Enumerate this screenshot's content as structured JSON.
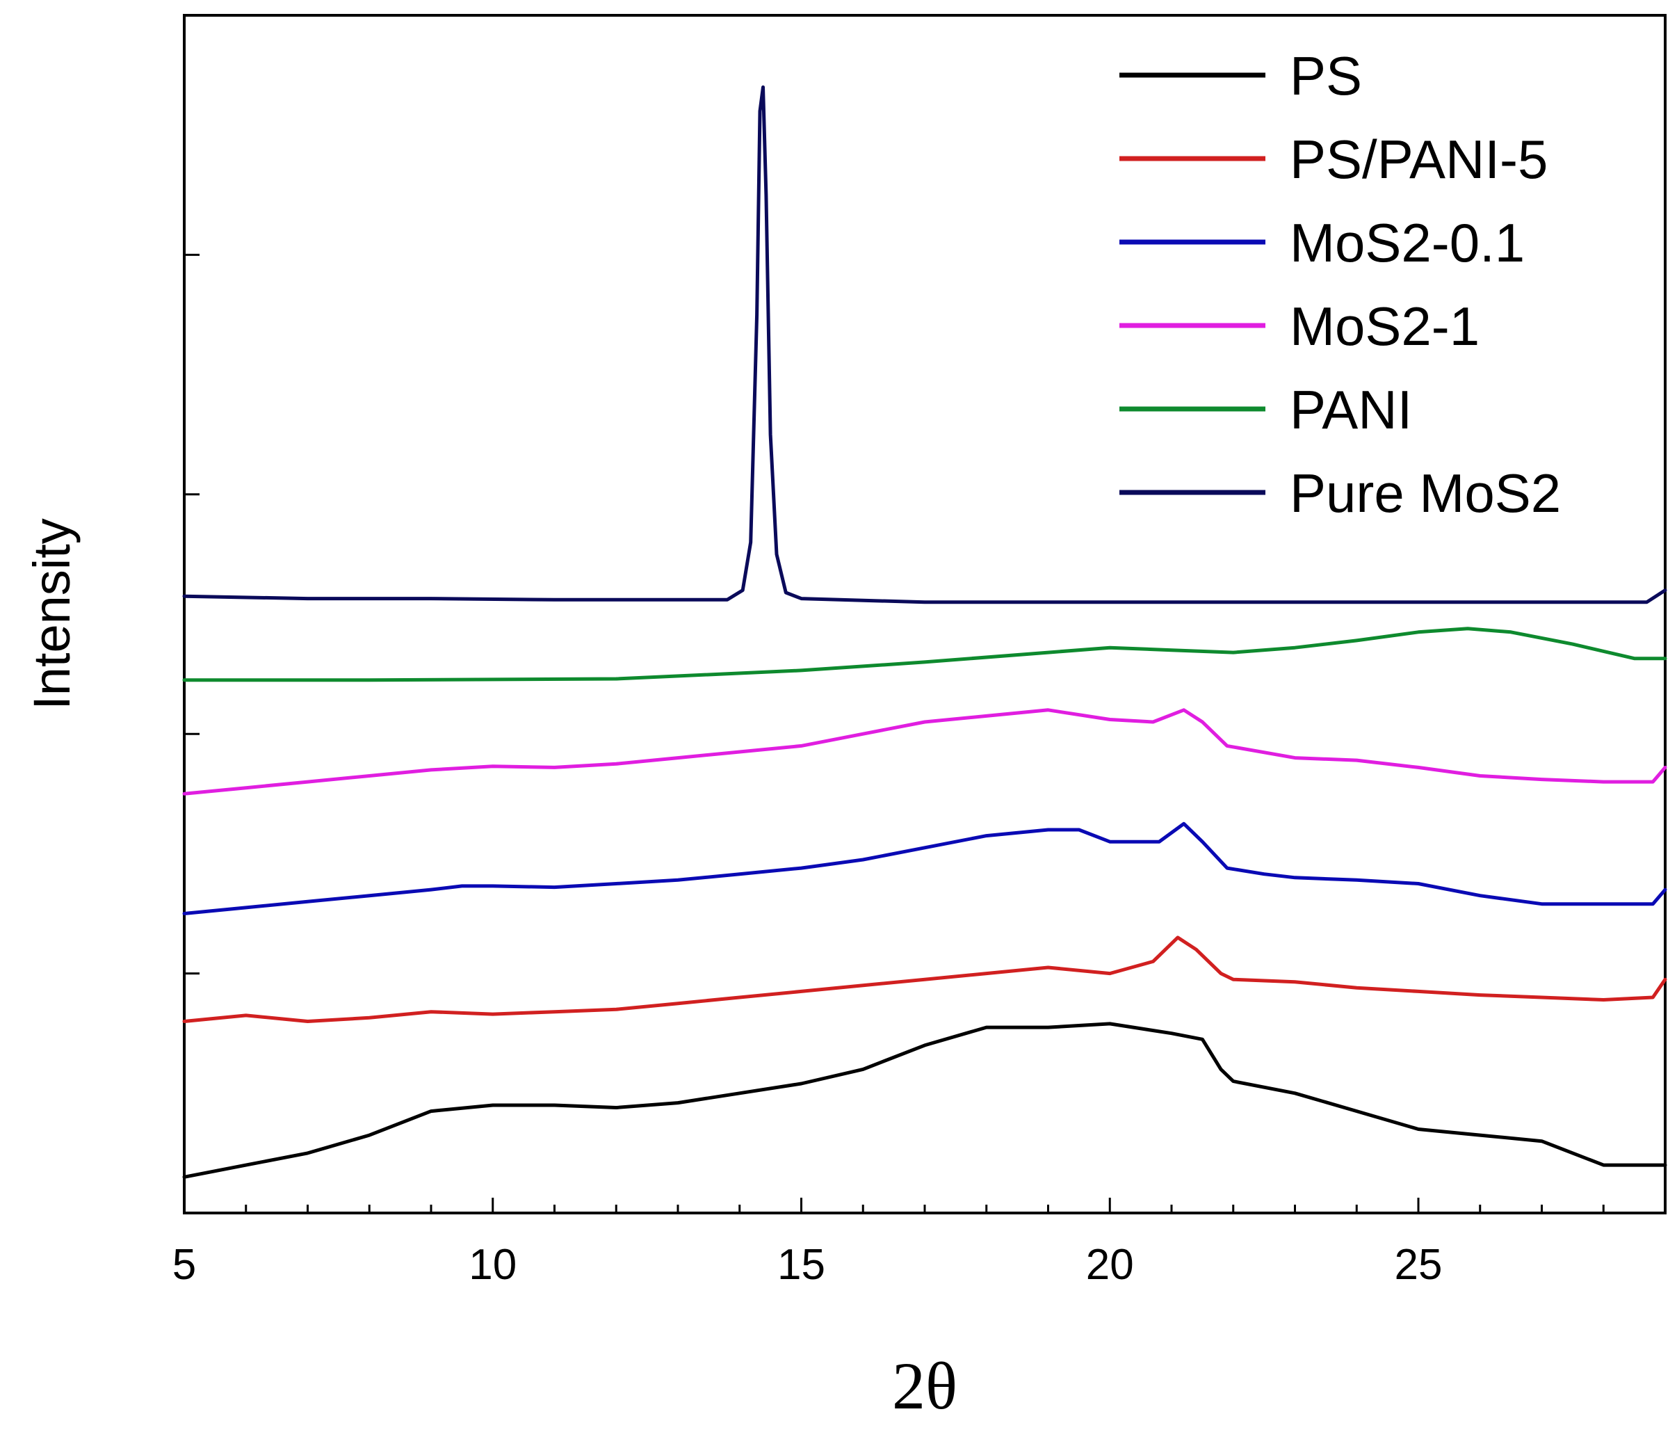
{
  "chart_data": {
    "type": "line",
    "title": "",
    "xlabel": "2θ",
    "ylabel": "Intensity",
    "xlim": [
      5,
      29
    ],
    "ylim": [
      0,
      100
    ],
    "x_ticks": [
      5,
      10,
      15,
      20,
      25
    ],
    "y_ticks_labeled": false,
    "legend_position": "top-right",
    "series": [
      {
        "name": "PS",
        "color": "#000000",
        "points": [
          [
            5,
            3
          ],
          [
            6,
            4
          ],
          [
            7,
            5
          ],
          [
            8,
            6.5
          ],
          [
            9,
            8.5
          ],
          [
            10,
            9
          ],
          [
            11,
            9
          ],
          [
            12,
            8.8
          ],
          [
            13,
            9.2
          ],
          [
            14,
            10
          ],
          [
            15,
            10.8
          ],
          [
            16,
            12
          ],
          [
            17,
            14
          ],
          [
            18,
            15.5
          ],
          [
            19,
            15.5
          ],
          [
            20,
            15.8
          ],
          [
            21,
            15
          ],
          [
            21.5,
            14.5
          ],
          [
            21.8,
            12
          ],
          [
            22,
            11
          ],
          [
            23,
            10
          ],
          [
            24,
            8.5
          ],
          [
            25,
            7
          ],
          [
            26,
            6.5
          ],
          [
            27,
            6
          ],
          [
            28,
            4
          ],
          [
            29,
            4
          ]
        ]
      },
      {
        "name": "PS/PANI-5",
        "color": "#d12020",
        "points": [
          [
            5,
            16
          ],
          [
            6,
            16.5
          ],
          [
            7,
            16
          ],
          [
            8,
            16.3
          ],
          [
            9,
            16.8
          ],
          [
            10,
            16.6
          ],
          [
            11,
            16.8
          ],
          [
            12,
            17
          ],
          [
            13,
            17.5
          ],
          [
            14,
            18
          ],
          [
            15,
            18.5
          ],
          [
            16,
            19
          ],
          [
            17,
            19.5
          ],
          [
            18,
            20
          ],
          [
            19,
            20.5
          ],
          [
            20,
            20
          ],
          [
            20.7,
            21
          ],
          [
            21.1,
            23
          ],
          [
            21.4,
            22
          ],
          [
            21.8,
            20
          ],
          [
            22,
            19.5
          ],
          [
            23,
            19.3
          ],
          [
            24,
            18.8
          ],
          [
            25,
            18.5
          ],
          [
            26,
            18.2
          ],
          [
            27,
            18
          ],
          [
            28,
            17.8
          ],
          [
            28.8,
            18
          ],
          [
            29,
            19.5
          ]
        ]
      },
      {
        "name": "MoS2-0.1",
        "color": "#0a0ab4",
        "points": [
          [
            5,
            25
          ],
          [
            6,
            25.5
          ],
          [
            7,
            26
          ],
          [
            8,
            26.5
          ],
          [
            9,
            27
          ],
          [
            9.5,
            27.3
          ],
          [
            10,
            27.3
          ],
          [
            11,
            27.2
          ],
          [
            12,
            27.5
          ],
          [
            13,
            27.8
          ],
          [
            14,
            28.3
          ],
          [
            15,
            28.8
          ],
          [
            16,
            29.5
          ],
          [
            17,
            30.5
          ],
          [
            18,
            31.5
          ],
          [
            19,
            32
          ],
          [
            19.5,
            32
          ],
          [
            20,
            31
          ],
          [
            20.8,
            31
          ],
          [
            21.2,
            32.5
          ],
          [
            21.5,
            31
          ],
          [
            21.9,
            28.8
          ],
          [
            22.5,
            28.3
          ],
          [
            23,
            28
          ],
          [
            24,
            27.8
          ],
          [
            25,
            27.5
          ],
          [
            26,
            26.5
          ],
          [
            27,
            25.8
          ],
          [
            28,
            25.8
          ],
          [
            28.8,
            25.8
          ],
          [
            29,
            27
          ]
        ]
      },
      {
        "name": "MoS2-1",
        "color": "#e01ee0",
        "points": [
          [
            5,
            35
          ],
          [
            6,
            35.5
          ],
          [
            7,
            36
          ],
          [
            8,
            36.5
          ],
          [
            9,
            37
          ],
          [
            10,
            37.3
          ],
          [
            11,
            37.2
          ],
          [
            12,
            37.5
          ],
          [
            13,
            38
          ],
          [
            14,
            38.5
          ],
          [
            15,
            39
          ],
          [
            16,
            40
          ],
          [
            17,
            41
          ],
          [
            18,
            41.5
          ],
          [
            19,
            42
          ],
          [
            20,
            41.2
          ],
          [
            20.7,
            41
          ],
          [
            21.2,
            42
          ],
          [
            21.5,
            41
          ],
          [
            21.9,
            39
          ],
          [
            23,
            38
          ],
          [
            24,
            37.8
          ],
          [
            25,
            37.2
          ],
          [
            26,
            36.5
          ],
          [
            27,
            36.2
          ],
          [
            28,
            36
          ],
          [
            28.8,
            36
          ],
          [
            29,
            37.2
          ]
        ]
      },
      {
        "name": "PANI",
        "color": "#0e8a2e",
        "points": [
          [
            5,
            44.5
          ],
          [
            8,
            44.5
          ],
          [
            12,
            44.6
          ],
          [
            15,
            45.3
          ],
          [
            17,
            46
          ],
          [
            19,
            46.8
          ],
          [
            20,
            47.2
          ],
          [
            21,
            47
          ],
          [
            22,
            46.8
          ],
          [
            23,
            47.2
          ],
          [
            24,
            47.8
          ],
          [
            25,
            48.5
          ],
          [
            25.8,
            48.8
          ],
          [
            26.5,
            48.5
          ],
          [
            27.5,
            47.5
          ],
          [
            28.5,
            46.3
          ],
          [
            29,
            46.3
          ]
        ]
      },
      {
        "name": "Pure MoS2",
        "color": "#0a0a5a",
        "points": [
          [
            5,
            51.5
          ],
          [
            7,
            51.3
          ],
          [
            9,
            51.3
          ],
          [
            11,
            51.2
          ],
          [
            13,
            51.2
          ],
          [
            13.8,
            51.2
          ],
          [
            14.05,
            52
          ],
          [
            14.18,
            56
          ],
          [
            14.28,
            75
          ],
          [
            14.33,
            92
          ],
          [
            14.38,
            94
          ],
          [
            14.43,
            85
          ],
          [
            14.5,
            65
          ],
          [
            14.6,
            55
          ],
          [
            14.75,
            51.8
          ],
          [
            15,
            51.3
          ],
          [
            17,
            51
          ],
          [
            19,
            51
          ],
          [
            21,
            51
          ],
          [
            23,
            51
          ],
          [
            25,
            51
          ],
          [
            27,
            51
          ],
          [
            28.7,
            51
          ],
          [
            29,
            52
          ]
        ]
      }
    ]
  }
}
